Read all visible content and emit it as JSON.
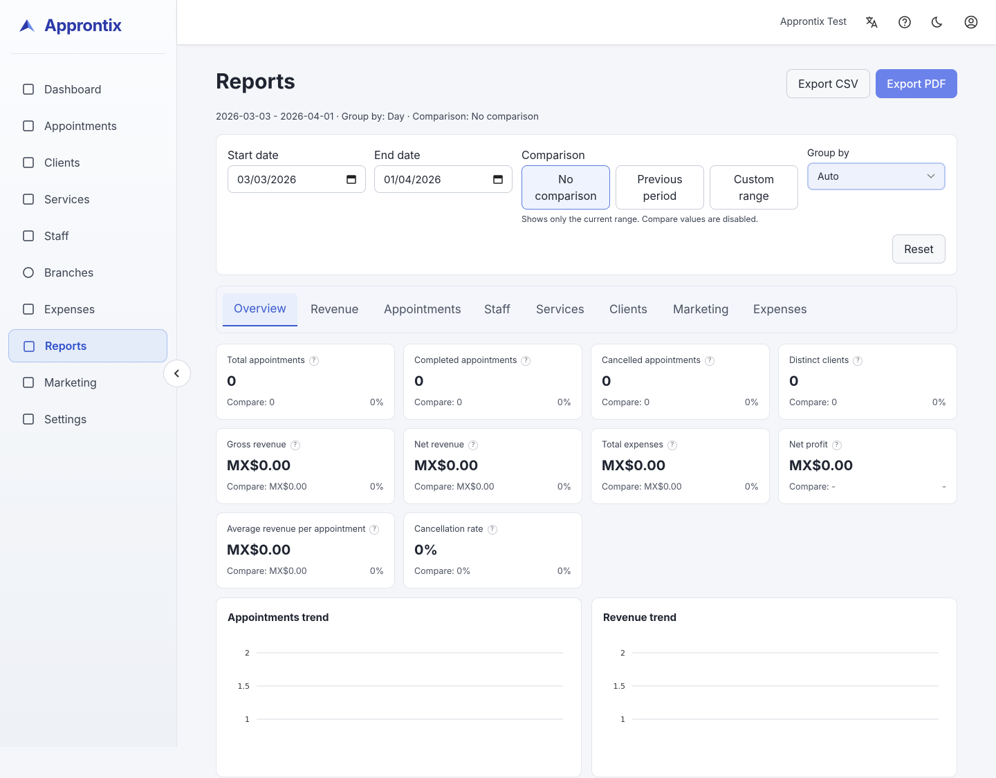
{
  "brand": "Approntix",
  "nav": [
    {
      "label": "Dashboard",
      "active": false
    },
    {
      "label": "Appointments",
      "active": false
    },
    {
      "label": "Clients",
      "active": false
    },
    {
      "label": "Services",
      "active": false
    },
    {
      "label": "Staff",
      "active": false
    },
    {
      "label": "Branches",
      "active": false
    },
    {
      "label": "Expenses",
      "active": false
    },
    {
      "label": "Reports",
      "active": true
    },
    {
      "label": "Marketing",
      "active": false
    },
    {
      "label": "Settings",
      "active": false
    }
  ],
  "topbar": {
    "user": "Approntix Test"
  },
  "header": {
    "title": "Reports",
    "subtitle": "2026-03-03 - 2026-04-01 · Group by: Day · Comparison: No comparison",
    "export_csv": "Export CSV",
    "export_pdf": "Export PDF"
  },
  "filters": {
    "start_label": "Start date",
    "start_value": "03/03/2026",
    "end_label": "End date",
    "end_value": "01/04/2026",
    "comparison_label": "Comparison",
    "comparison_options": [
      {
        "label": "No comparison",
        "selected": true
      },
      {
        "label": "Previous period",
        "selected": false
      },
      {
        "label": "Custom range",
        "selected": false
      }
    ],
    "comparison_hint": "Shows only the current range. Compare values are disabled.",
    "group_by_label": "Group by",
    "group_by_value": "Auto",
    "reset": "Reset"
  },
  "tabs": [
    {
      "label": "Overview",
      "active": true
    },
    {
      "label": "Revenue",
      "active": false
    },
    {
      "label": "Appointments",
      "active": false
    },
    {
      "label": "Staff",
      "active": false
    },
    {
      "label": "Services",
      "active": false
    },
    {
      "label": "Clients",
      "active": false
    },
    {
      "label": "Marketing",
      "active": false
    },
    {
      "label": "Expenses",
      "active": false
    }
  ],
  "kpis": [
    {
      "label": "Total appointments",
      "value": "0",
      "compare": "Compare: 0",
      "change": "0%"
    },
    {
      "label": "Completed appointments",
      "value": "0",
      "compare": "Compare: 0",
      "change": "0%"
    },
    {
      "label": "Cancelled appointments",
      "value": "0",
      "compare": "Compare: 0",
      "change": "0%"
    },
    {
      "label": "Distinct clients",
      "value": "0",
      "compare": "Compare: 0",
      "change": "0%"
    },
    {
      "label": "Gross revenue",
      "value": "MX$0.00",
      "compare": "Compare: MX$0.00",
      "change": "0%"
    },
    {
      "label": "Net revenue",
      "value": "MX$0.00",
      "compare": "Compare: MX$0.00",
      "change": "0%"
    },
    {
      "label": "Total expenses",
      "value": "MX$0.00",
      "compare": "Compare: MX$0.00",
      "change": "0%"
    },
    {
      "label": "Net profit",
      "value": "MX$0.00",
      "compare": "Compare: -",
      "change": "-"
    },
    {
      "label": "Average revenue per appointment",
      "value": "MX$0.00",
      "compare": "Compare: MX$0.00",
      "change": "0%"
    },
    {
      "label": "Cancellation rate",
      "value": "0%",
      "compare": "Compare: 0%",
      "change": "0%"
    }
  ],
  "chart_data": [
    {
      "type": "line",
      "title": "Appointments trend",
      "ylim": [
        0,
        2
      ],
      "yticks": [
        2,
        1.5,
        1
      ],
      "grid": true
    },
    {
      "type": "line",
      "title": "Revenue trend",
      "ylim": [
        0,
        2
      ],
      "yticks": [
        2,
        1.5,
        1
      ],
      "grid": true
    }
  ]
}
